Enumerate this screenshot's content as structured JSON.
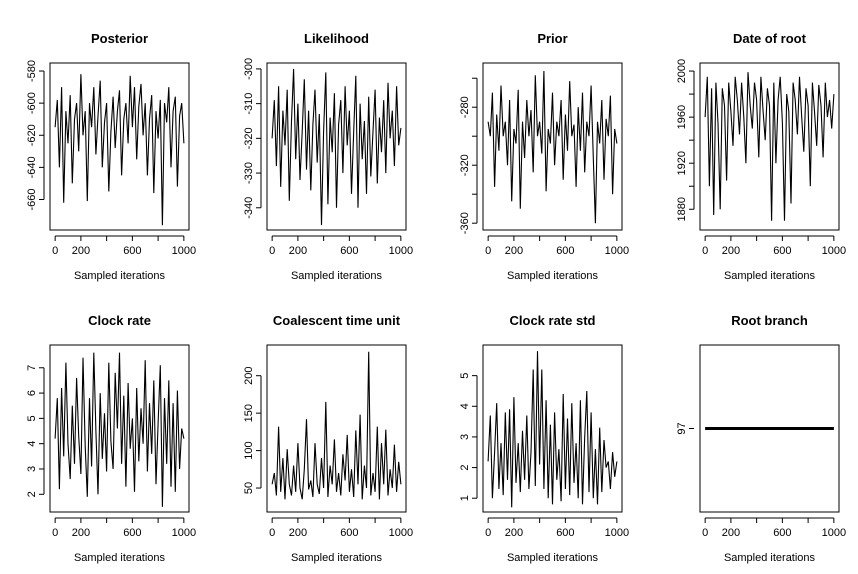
{
  "chart_data": [
    {
      "type": "line",
      "title": "Posterior",
      "xlabel": "Sampled iterations",
      "ylabel": "",
      "xlim": [
        0,
        1000
      ],
      "ylim": [
        -679,
        -575
      ],
      "x_ticks": [
        0,
        200,
        400,
        600,
        800,
        1000
      ],
      "x_tick_labels": [
        "0",
        "200",
        "",
        "600",
        "",
        "1000"
      ],
      "y_ticks": [
        -580,
        -600,
        -620,
        -640,
        -660
      ],
      "y_tick_labels": [
        "-580",
        "-600",
        "-620",
        "-640",
        "-660"
      ],
      "values": [
        -615,
        -598,
        -640,
        -590,
        -662,
        -605,
        -625,
        -595,
        -650,
        -610,
        -600,
        -630,
        -582,
        -620,
        -605,
        -661,
        -600,
        -615,
        -590,
        -632,
        -608,
        -586,
        -640,
        -612,
        -600,
        -655,
        -618,
        -596,
        -628,
        -605,
        -592,
        -645,
        -610,
        -600,
        -625,
        -583,
        -615,
        -590,
        -635,
        -602,
        -588,
        -620,
        -600,
        -645,
        -610,
        -595,
        -656,
        -605,
        -622,
        -598,
        -676,
        -600,
        -612,
        -590,
        -640,
        -605,
        -596,
        -652,
        -608,
        -600,
        -625
      ]
    },
    {
      "type": "line",
      "title": "Likelihood",
      "xlabel": "Sampled iterations",
      "ylabel": "",
      "xlim": [
        0,
        1000
      ],
      "ylim": [
        -346.4,
        -298.3
      ],
      "x_ticks": [
        0,
        200,
        400,
        600,
        800,
        1000
      ],
      "x_tick_labels": [
        "0",
        "200",
        "",
        "600",
        "",
        "1000"
      ],
      "y_ticks": [
        -300,
        -310,
        -320,
        -330,
        -340
      ],
      "y_tick_labels": [
        "-300",
        "-310",
        "-320",
        "-330",
        "-340"
      ],
      "values": [
        -320,
        -309,
        -328,
        -305,
        -334,
        -312,
        -322,
        -306,
        -338,
        -315,
        -300,
        -326,
        -310,
        -332,
        -318,
        -303,
        -329,
        -312,
        -335,
        -316,
        -306,
        -327,
        -313,
        -345,
        -318,
        -301,
        -339,
        -314,
        -324,
        -307,
        -340,
        -316,
        -309,
        -330,
        -305,
        -322,
        -312,
        -336,
        -318,
        -302,
        -340,
        -310,
        -326,
        -315,
        -336,
        -308,
        -331,
        -318,
        -306,
        -333,
        -314,
        -324,
        -309,
        -330,
        -304,
        -320,
        -312,
        -328,
        -305,
        -322,
        -317
      ]
    },
    {
      "type": "line",
      "title": "Prior",
      "xlabel": "Sampled iterations",
      "ylabel": "",
      "xlim": [
        0,
        1000
      ],
      "ylim": [
        -364.7,
        -249.5
      ],
      "x_ticks": [
        0,
        200,
        400,
        600,
        800,
        1000
      ],
      "x_tick_labels": [
        "0",
        "200",
        "",
        "600",
        "",
        "1000"
      ],
      "y_ticks": [
        -260,
        -280,
        -300,
        -320,
        -340,
        -360
      ],
      "y_tick_labels": [
        "",
        "-280",
        "",
        "-320",
        "",
        "-360"
      ],
      "values": [
        -290,
        -300,
        -270,
        -335,
        -285,
        -310,
        -265,
        -300,
        -290,
        -320,
        -275,
        -345,
        -295,
        -305,
        -268,
        -350,
        -290,
        -315,
        -275,
        -300,
        -282,
        -325,
        -258,
        -300,
        -290,
        -312,
        -255,
        -338,
        -295,
        -305,
        -270,
        -320,
        -290,
        -300,
        -275,
        -330,
        -285,
        -310,
        -262,
        -300,
        -292,
        -335,
        -280,
        -310,
        -270,
        -325,
        -290,
        -300,
        -265,
        -315,
        -360,
        -290,
        -305,
        -275,
        -330,
        -288,
        -300,
        -272,
        -340,
        -295,
        -305
      ]
    },
    {
      "type": "line",
      "title": "Date of root",
      "xlabel": "Sampled iterations",
      "ylabel": "",
      "xlim": [
        0,
        1000
      ],
      "ylim": [
        1862,
        2007
      ],
      "x_ticks": [
        0,
        200,
        400,
        600,
        800,
        1000
      ],
      "x_tick_labels": [
        "0",
        "200",
        "",
        "600",
        "",
        "1000"
      ],
      "y_ticks": [
        1880,
        1900,
        1920,
        1940,
        1960,
        1980,
        2000
      ],
      "y_tick_labels": [
        "1880",
        "",
        "1920",
        "",
        "1960",
        "",
        "2000"
      ],
      "values": [
        1960,
        1995,
        1900,
        1985,
        1875,
        1990,
        1955,
        1880,
        1985,
        1970,
        1905,
        1990,
        1965,
        1935,
        1995,
        1975,
        1945,
        1990,
        1960,
        1920,
        1999,
        1970,
        1950,
        1990,
        1975,
        1925,
        1995,
        1965,
        1940,
        1985,
        1970,
        1870,
        1990,
        1920,
        1975,
        1995,
        1955,
        1870,
        1980,
        1965,
        1885,
        1990,
        1975,
        1945,
        1995,
        1960,
        1930,
        1985,
        1970,
        1900,
        1990,
        1965,
        1935,
        1988,
        1970,
        1925,
        1990,
        1960,
        1975,
        1950,
        1980
      ]
    },
    {
      "type": "line",
      "title": "Clock rate",
      "xlabel": "Sampled iterations",
      "ylabel": "",
      "xlim": [
        0,
        1000
      ],
      "ylim": [
        1.3,
        7.9
      ],
      "x_ticks": [
        0,
        200,
        400,
        600,
        800,
        1000
      ],
      "x_tick_labels": [
        "0",
        "200",
        "",
        "600",
        "",
        "1000"
      ],
      "y_ticks": [
        2,
        3,
        4,
        5,
        6,
        7
      ],
      "y_tick_labels": [
        "2",
        "3",
        "4",
        "5",
        "6",
        "7"
      ],
      "values": [
        4.2,
        5.8,
        2.2,
        6.2,
        3.5,
        7.2,
        4.0,
        2.6,
        5.5,
        3.2,
        6.6,
        4.3,
        2.8,
        7.4,
        3.9,
        1.9,
        5.8,
        3.1,
        7.6,
        4.5,
        2.0,
        6.0,
        3.4,
        5.2,
        2.9,
        7.2,
        4.1,
        3.0,
        6.8,
        4.6,
        7.6,
        3.2,
        5.9,
        2.3,
        6.4,
        3.8,
        5.0,
        2.1,
        6.2,
        3.3,
        5.4,
        4.0,
        7.3,
        2.9,
        5.6,
        3.6,
        6.5,
        2.4,
        4.8,
        7.1,
        1.5,
        5.8,
        3.2,
        6.5,
        2.3,
        5.6,
        2.1,
        6.1,
        3.0,
        4.6,
        4.2
      ]
    },
    {
      "type": "line",
      "title": "Coalescent time unit",
      "xlabel": "Sampled iterations",
      "ylabel": "",
      "xlim": [
        0,
        1000
      ],
      "ylim": [
        18,
        241
      ],
      "x_ticks": [
        0,
        200,
        400,
        600,
        800,
        1000
      ],
      "x_tick_labels": [
        "0",
        "200",
        "",
        "600",
        "",
        "1000"
      ],
      "y_ticks": [
        50,
        100,
        150,
        200
      ],
      "y_tick_labels": [
        "50",
        "100",
        "150",
        "200"
      ],
      "values": [
        55,
        70,
        40,
        132,
        45,
        90,
        35,
        102,
        55,
        40,
        80,
        45,
        110,
        50,
        35,
        75,
        142,
        48,
        60,
        38,
        110,
        55,
        42,
        90,
        50,
        165,
        38,
        80,
        55,
        115,
        45,
        70,
        40,
        95,
        60,
        121,
        45,
        75,
        38,
        127,
        55,
        148,
        35,
        80,
        50,
        232,
        40,
        70,
        45,
        132,
        35,
        110,
        55,
        128,
        40,
        75,
        50,
        108,
        45,
        85,
        55
      ]
    },
    {
      "type": "line",
      "title": "Clock rate std",
      "xlabel": "Sampled iterations",
      "ylabel": "",
      "xlim": [
        0,
        1000
      ],
      "ylim": [
        0.55,
        6.0
      ],
      "x_ticks": [
        0,
        200,
        400,
        600,
        800,
        1000
      ],
      "x_tick_labels": [
        "0",
        "200",
        "",
        "600",
        "",
        "1000"
      ],
      "y_ticks": [
        1,
        2,
        3,
        4,
        5
      ],
      "y_tick_labels": [
        "1",
        "2",
        "3",
        "4",
        "5"
      ],
      "values": [
        2.2,
        3.7,
        1.0,
        2.5,
        4.1,
        1.3,
        2.8,
        1.1,
        3.8,
        1.6,
        3.9,
        0.7,
        4.3,
        1.5,
        2.8,
        1.2,
        3.2,
        1.6,
        3.7,
        1.3,
        2.5,
        5.2,
        1.4,
        5.8,
        2.1,
        5.2,
        1.3,
        4.2,
        1.0,
        3.4,
        0.8,
        3.8,
        1.6,
        2.6,
        0.9,
        4.4,
        1.3,
        3.6,
        1.1,
        4.1,
        1.5,
        2.8,
        1.0,
        4.2,
        0.8,
        3.0,
        4.5,
        1.2,
        3.8,
        1.0,
        2.6,
        0.8,
        3.3,
        1.2,
        2.9,
        2.0,
        2.2,
        1.3,
        2.5,
        1.7,
        2.2
      ]
    },
    {
      "type": "line",
      "title": "Root branch",
      "xlabel": "Sampled iterations",
      "ylabel": "",
      "xlim": [
        0,
        1000
      ],
      "ylim": [
        96,
        98
      ],
      "x_ticks": [
        0,
        200,
        400,
        600,
        800,
        1000
      ],
      "x_tick_labels": [
        "0",
        "200",
        "",
        "600",
        "",
        "1000"
      ],
      "y_ticks": [
        97
      ],
      "y_tick_labels": [
        "97"
      ],
      "values": [
        97,
        97,
        97,
        97,
        97,
        97,
        97,
        97,
        97,
        97,
        97
      ]
    }
  ],
  "colors": {
    "line": "#000000",
    "background": "#ffffff"
  }
}
